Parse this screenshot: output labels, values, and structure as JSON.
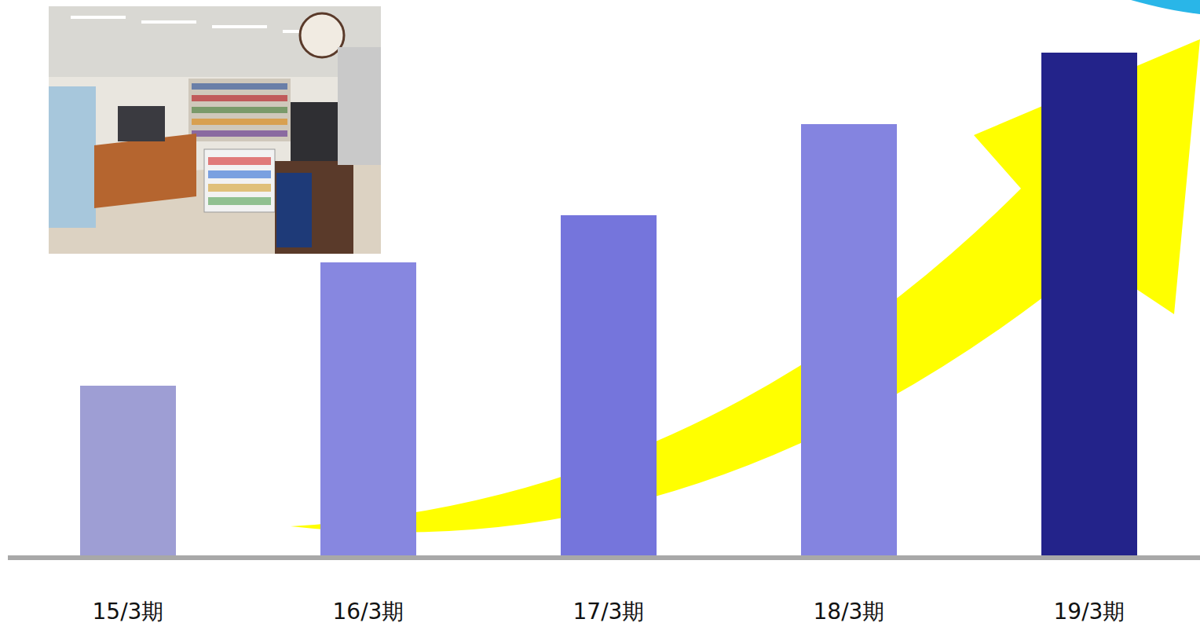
{
  "chart_data": {
    "type": "bar",
    "categories": [
      "15/3期",
      "16/3期",
      "17/3期",
      "18/3期",
      "19/3期"
    ],
    "values": [
      216,
      373,
      433,
      549,
      640
    ],
    "colors": [
      "#9e9ed4",
      "#8787e0",
      "#7575dc",
      "#8484e0",
      "#23238a"
    ],
    "ylim": [
      0,
      640
    ],
    "tick_labels": "x",
    "grid": false
  }
}
